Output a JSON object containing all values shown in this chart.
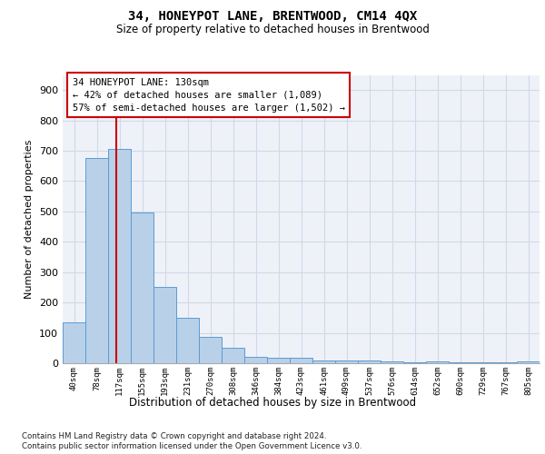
{
  "title": "34, HONEYPOT LANE, BRENTWOOD, CM14 4QX",
  "subtitle": "Size of property relative to detached houses in Brentwood",
  "xlabel": "Distribution of detached houses by size in Brentwood",
  "ylabel": "Number of detached properties",
  "bin_labels": [
    "40sqm",
    "78sqm",
    "117sqm",
    "155sqm",
    "193sqm",
    "231sqm",
    "270sqm",
    "308sqm",
    "346sqm",
    "384sqm",
    "423sqm",
    "461sqm",
    "499sqm",
    "537sqm",
    "576sqm",
    "614sqm",
    "652sqm",
    "690sqm",
    "729sqm",
    "767sqm",
    "805sqm"
  ],
  "bar_heights": [
    135,
    675,
    707,
    497,
    252,
    150,
    88,
    50,
    22,
    18,
    18,
    10,
    10,
    10,
    7,
    2,
    7,
    2,
    2,
    2,
    7
  ],
  "bar_color": "#b8d0e8",
  "bar_edge_color": "#5b9bd5",
  "property_label": "34 HONEYPOT LANE: 130sqm",
  "annotation_line1": "← 42% of detached houses are smaller (1,089)",
  "annotation_line2": "57% of semi-detached houses are larger (1,502) →",
  "vline_color": "#cc0000",
  "annotation_box_color": "#cc0000",
  "grid_color": "#d0d8e8",
  "background_color": "#eef2f8",
  "footer_line1": "Contains HM Land Registry data © Crown copyright and database right 2024.",
  "footer_line2": "Contains public sector information licensed under the Open Government Licence v3.0.",
  "ylim": [
    0,
    950
  ],
  "yticks": [
    0,
    100,
    200,
    300,
    400,
    500,
    600,
    700,
    800,
    900
  ]
}
